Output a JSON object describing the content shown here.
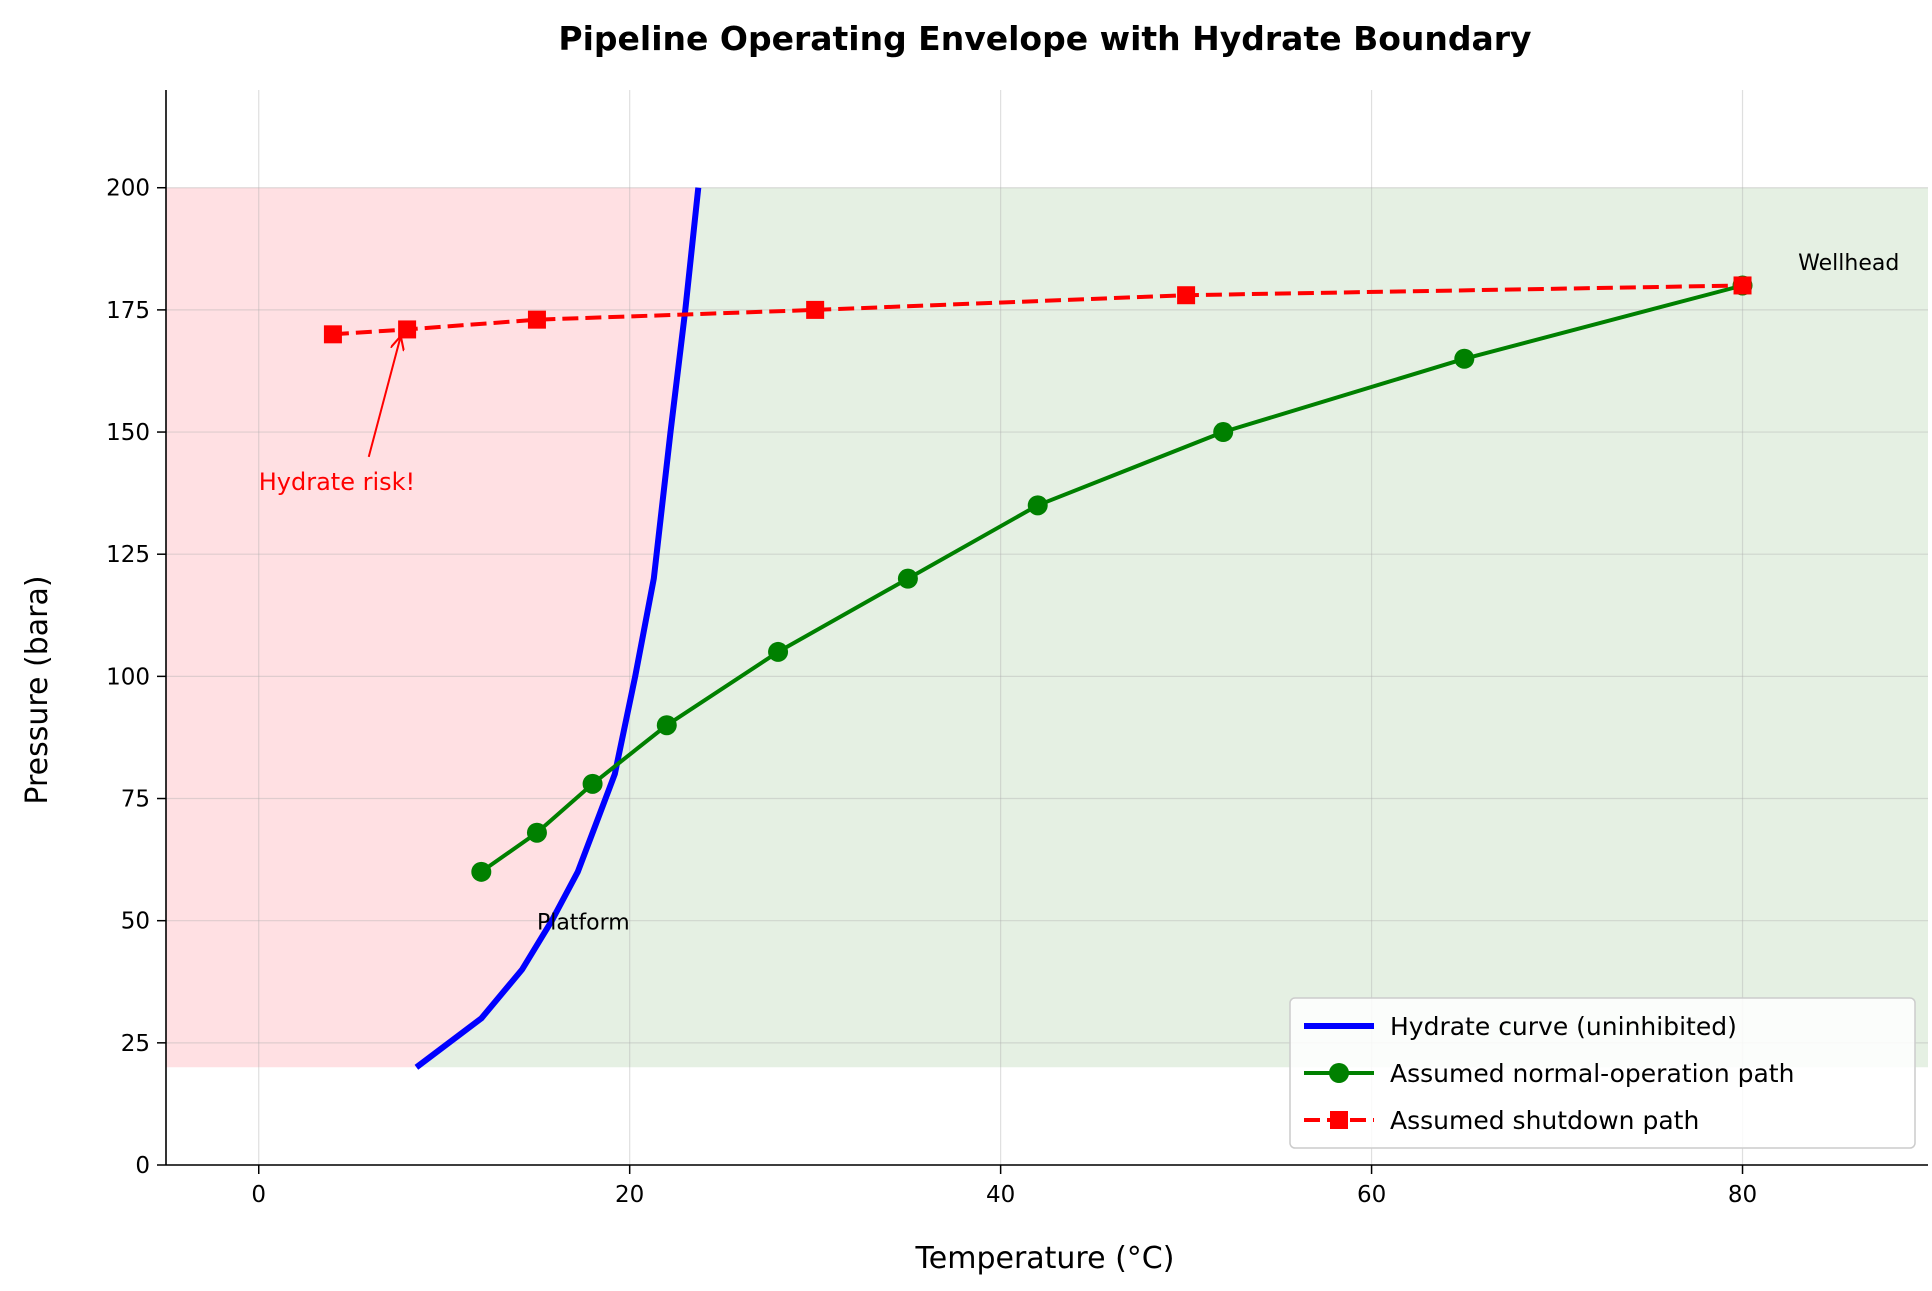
{
  "chart_data": {
    "type": "line",
    "title": "Pipeline Operating Envelope with Hydrate Boundary",
    "xlabel": "Temperature (°C)",
    "ylabel": "Pressure (bara)",
    "xlim": [
      -5,
      90
    ],
    "ylim": [
      0,
      220
    ],
    "xticks": [
      0,
      20,
      40,
      60,
      80
    ],
    "yticks": [
      0,
      25,
      50,
      75,
      100,
      125,
      150,
      175,
      200
    ],
    "grid": true,
    "legend_position": "lower-right",
    "regions": [
      {
        "name": "hydrate-zone",
        "color": "#ffe0e3",
        "y_range": [
          20,
          200
        ],
        "bounded_by": "hydrate-curve-left"
      },
      {
        "name": "safe-zone",
        "color": "#e5f0e3",
        "y_range": [
          20,
          200
        ],
        "bounded_by": "hydrate-curve-right"
      }
    ],
    "series": [
      {
        "name": "Hydrate curve (uninhibited)",
        "color": "#0000ff",
        "style": "solid",
        "marker": "none",
        "points": [
          [
            8.5,
            20
          ],
          [
            12,
            30
          ],
          [
            14.2,
            40
          ],
          [
            15.8,
            50
          ],
          [
            17.2,
            60
          ],
          [
            18.2,
            70
          ],
          [
            19.2,
            80
          ],
          [
            20.3,
            100
          ],
          [
            21.3,
            120
          ],
          [
            22.2,
            150
          ],
          [
            23.0,
            175
          ],
          [
            23.7,
            200
          ]
        ]
      },
      {
        "name": "Assumed normal-operation path",
        "color": "#008000",
        "style": "solid",
        "marker": "circle",
        "points": [
          [
            12,
            60
          ],
          [
            15,
            68
          ],
          [
            18,
            78
          ],
          [
            22,
            90
          ],
          [
            28,
            105
          ],
          [
            35,
            120
          ],
          [
            42,
            135
          ],
          [
            52,
            150
          ],
          [
            65,
            165
          ],
          [
            80,
            180
          ]
        ]
      },
      {
        "name": "Assumed shutdown path",
        "color": "#ff0000",
        "style": "dashed",
        "marker": "square",
        "points": [
          [
            4,
            170
          ],
          [
            8,
            171
          ],
          [
            15,
            173
          ],
          [
            30,
            175
          ],
          [
            50,
            178
          ],
          [
            80,
            180
          ]
        ]
      }
    ],
    "annotations": [
      {
        "text": "Wellhead",
        "x": 83,
        "y": 185
      },
      {
        "text": "Platform",
        "x": 15,
        "y": 50
      },
      {
        "text": "Hydrate risk!",
        "x": 0,
        "y": 140,
        "arrow_to": [
          7.8,
          171
        ],
        "color": "#ff0000"
      }
    ]
  }
}
